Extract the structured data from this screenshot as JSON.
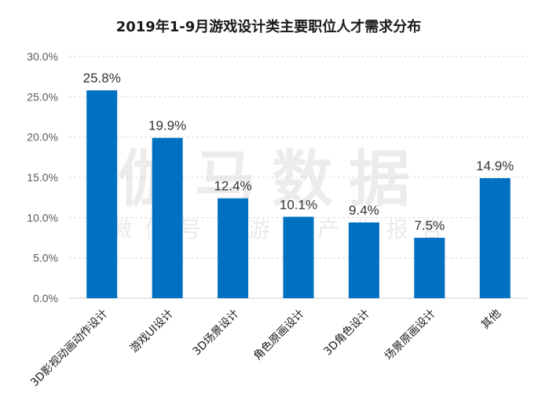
{
  "chart_data": {
    "type": "bar",
    "title": "2019年1-9月游戏设计类主要职位人才需求分布",
    "categories": [
      "3D影视动画动作设计",
      "游戏UI设计",
      "3D场景设计",
      "角色原画设计",
      "3D角色设计",
      "场景原画设计",
      "其他"
    ],
    "values": [
      25.8,
      19.9,
      12.4,
      10.1,
      9.4,
      7.5,
      14.9
    ],
    "data_labels": [
      "25.8%",
      "19.9%",
      "12.4%",
      "10.1%",
      "9.4%",
      "7.5%",
      "14.9%"
    ],
    "ylim": [
      0,
      30
    ],
    "yticks": [
      "0.0%",
      "5.0%",
      "10.0%",
      "15.0%",
      "20.0%",
      "25.0%",
      "30.0%"
    ],
    "xlabel": "",
    "ylabel": "",
    "grid": true,
    "legend": "none",
    "bar_color": "#0070C0",
    "grid_color": "#D9D9D9"
  },
  "watermark": {
    "main": "伽马数据",
    "sub": "微信号：游戏产业报告"
  }
}
